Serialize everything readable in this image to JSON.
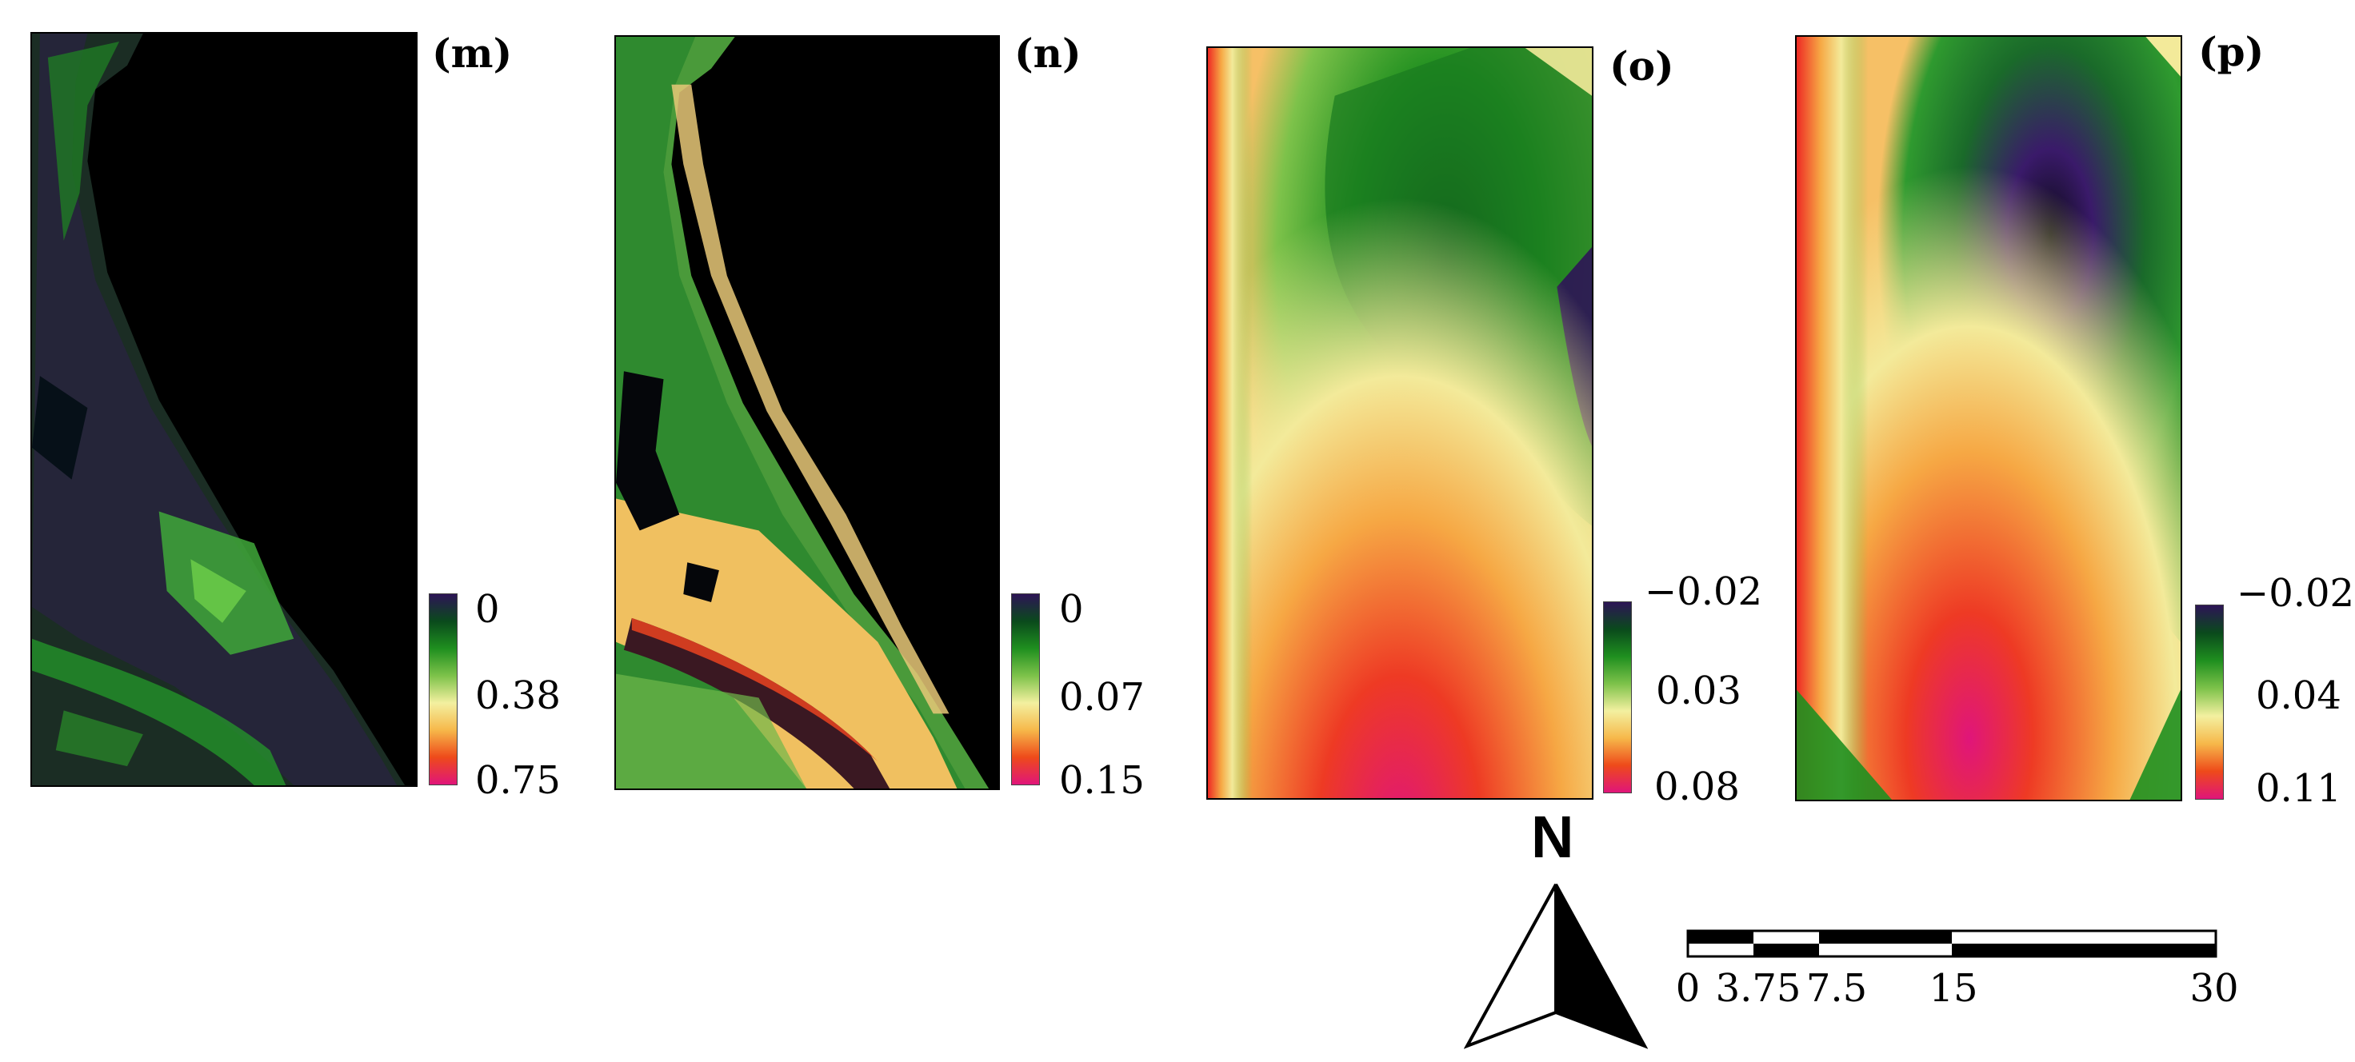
{
  "panels": [
    {
      "id": "m",
      "label": "(m)",
      "legend": {
        "top": "0",
        "mid": "0.38",
        "bottom": "0.75"
      }
    },
    {
      "id": "n",
      "label": "(n)",
      "legend": {
        "top": "0",
        "mid": "0.07",
        "bottom": "0.15"
      }
    },
    {
      "id": "o",
      "label": "(o)",
      "legend": {
        "top": "−0.02",
        "mid": "0.03",
        "bottom": "0.08"
      }
    },
    {
      "id": "p",
      "label": "(p)",
      "legend": {
        "top": "−0.02",
        "mid": "0.04",
        "bottom": "0.11"
      }
    }
  ],
  "colormap": [
    "#2d1456",
    "#0a4a1c",
    "#1f8f1f",
    "#7dc24a",
    "#f3f0a0",
    "#f6b84a",
    "#ee4a1a",
    "#e0157a"
  ],
  "north_arrow": {
    "letter": "N"
  },
  "scale_bar": {
    "ticks": [
      "0",
      "3.75",
      "7.5",
      "15",
      "30"
    ]
  }
}
